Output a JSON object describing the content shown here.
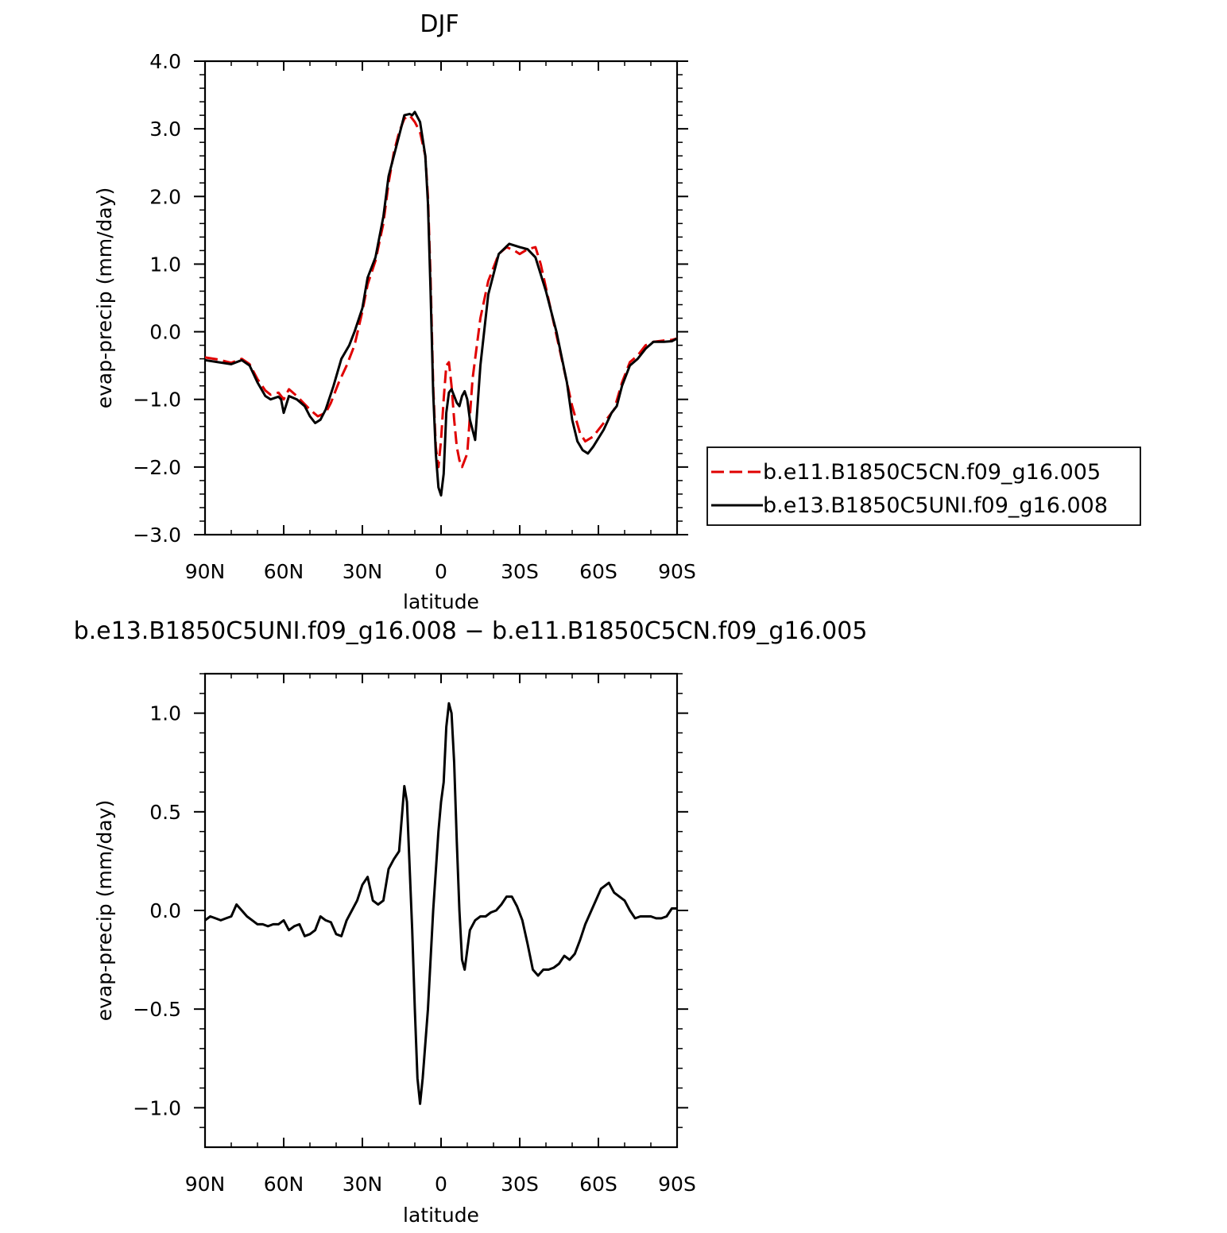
{
  "chart_data": [
    {
      "type": "line",
      "title": "DJF",
      "xlabel": "latitude",
      "ylabel": "evap-precip (mm/day)",
      "xticks": [
        "90N",
        "60N",
        "30N",
        "0",
        "30S",
        "60S",
        "90S"
      ],
      "yticks": [
        "4.0",
        "3.0",
        "2.0",
        "1.0",
        "0.0",
        "−1.0",
        "−2.0",
        "−3.0"
      ],
      "ylim": [
        -3.0,
        4.0
      ],
      "xlim": [
        90,
        -90
      ],
      "legend_position": "right",
      "series": [
        {
          "name": "b.e11.B1850C5CN.f09_g16.005",
          "color": "#e00000",
          "dash": true,
          "points": [
            [
              90,
              -0.38
            ],
            [
              85,
              -0.41
            ],
            [
              80,
              -0.46
            ],
            [
              76,
              -0.4
            ],
            [
              73,
              -0.48
            ],
            [
              70,
              -0.7
            ],
            [
              67,
              -0.87
            ],
            [
              65,
              -0.93
            ],
            [
              62,
              -0.9
            ],
            [
              60,
              -1.0
            ],
            [
              58,
              -0.85
            ],
            [
              55,
              -0.95
            ],
            [
              50,
              -1.15
            ],
            [
              47,
              -1.25
            ],
            [
              44,
              -1.2
            ],
            [
              42,
              -1.05
            ],
            [
              39,
              -0.75
            ],
            [
              36,
              -0.5
            ],
            [
              33,
              -0.2
            ],
            [
              30,
              0.3
            ],
            [
              28,
              0.7
            ],
            [
              25,
              1.05
            ],
            [
              22,
              1.6
            ],
            [
              20,
              2.2
            ],
            [
              18,
              2.65
            ],
            [
              16,
              2.95
            ],
            [
              14,
              3.15
            ],
            [
              12,
              3.2
            ],
            [
              10,
              3.1
            ],
            [
              8,
              2.95
            ],
            [
              6,
              2.6
            ],
            [
              5,
              2.0
            ],
            [
              4,
              0.8
            ],
            [
              3,
              -0.8
            ],
            [
              2,
              -1.7
            ],
            [
              1,
              -2.0
            ],
            [
              0,
              -1.6
            ],
            [
              -1,
              -1.0
            ],
            [
              -2,
              -0.5
            ],
            [
              -3,
              -0.45
            ],
            [
              -4,
              -0.8
            ],
            [
              -5,
              -1.3
            ],
            [
              -6,
              -1.7
            ],
            [
              -7,
              -1.9
            ],
            [
              -8,
              -2.0
            ],
            [
              -10,
              -1.8
            ],
            [
              -12,
              -0.7
            ],
            [
              -15,
              0.2
            ],
            [
              -18,
              0.75
            ],
            [
              -22,
              1.15
            ],
            [
              -25,
              1.25
            ],
            [
              -28,
              1.2
            ],
            [
              -30,
              1.15
            ],
            [
              -33,
              1.22
            ],
            [
              -36,
              1.25
            ],
            [
              -38,
              1.0
            ],
            [
              -42,
              0.3
            ],
            [
              -46,
              -0.4
            ],
            [
              -50,
              -1.1
            ],
            [
              -53,
              -1.5
            ],
            [
              -55,
              -1.62
            ],
            [
              -58,
              -1.55
            ],
            [
              -62,
              -1.35
            ],
            [
              -66,
              -1.15
            ],
            [
              -69,
              -0.75
            ],
            [
              -72,
              -0.45
            ],
            [
              -75,
              -0.35
            ],
            [
              -78,
              -0.2
            ],
            [
              -81,
              -0.15
            ],
            [
              -85,
              -0.13
            ],
            [
              -88,
              -0.12
            ],
            [
              -90,
              -0.1
            ]
          ]
        },
        {
          "name": "b.e13.B1850C5UNI.f09_g16.008",
          "color": "#000000",
          "dash": false,
          "points": [
            [
              90,
              -0.42
            ],
            [
              85,
              -0.45
            ],
            [
              80,
              -0.48
            ],
            [
              76,
              -0.42
            ],
            [
              73,
              -0.5
            ],
            [
              70,
              -0.75
            ],
            [
              67,
              -0.95
            ],
            [
              65,
              -1.0
            ],
            [
              62,
              -0.96
            ],
            [
              61,
              -1.0
            ],
            [
              60,
              -1.2
            ],
            [
              58,
              -0.95
            ],
            [
              55,
              -1.0
            ],
            [
              52,
              -1.1
            ],
            [
              50,
              -1.25
            ],
            [
              48,
              -1.35
            ],
            [
              46,
              -1.3
            ],
            [
              44,
              -1.15
            ],
            [
              41,
              -0.8
            ],
            [
              38,
              -0.4
            ],
            [
              35,
              -0.2
            ],
            [
              33,
              0.0
            ],
            [
              30,
              0.35
            ],
            [
              28,
              0.8
            ],
            [
              25,
              1.1
            ],
            [
              22,
              1.7
            ],
            [
              20,
              2.3
            ],
            [
              18,
              2.6
            ],
            [
              16,
              2.9
            ],
            [
              14,
              3.2
            ],
            [
              12,
              3.22
            ],
            [
              11,
              3.2
            ],
            [
              10,
              3.25
            ],
            [
              8,
              3.1
            ],
            [
              6,
              2.6
            ],
            [
              5,
              1.9
            ],
            [
              4,
              0.6
            ],
            [
              3,
              -0.9
            ],
            [
              2,
              -1.8
            ],
            [
              1,
              -2.3
            ],
            [
              0,
              -2.42
            ],
            [
              -1,
              -2.1
            ],
            [
              -2,
              -1.2
            ],
            [
              -3,
              -0.9
            ],
            [
              -4,
              -0.85
            ],
            [
              -6,
              -1.05
            ],
            [
              -7,
              -1.1
            ],
            [
              -8,
              -0.95
            ],
            [
              -9,
              -0.88
            ],
            [
              -10,
              -1.0
            ],
            [
              -11,
              -1.3
            ],
            [
              -12,
              -1.45
            ],
            [
              -13,
              -1.6
            ],
            [
              -15,
              -0.5
            ],
            [
              -18,
              0.55
            ],
            [
              -22,
              1.15
            ],
            [
              -26,
              1.3
            ],
            [
              -30,
              1.25
            ],
            [
              -33,
              1.22
            ],
            [
              -36,
              1.1
            ],
            [
              -40,
              0.6
            ],
            [
              -44,
              0.0
            ],
            [
              -48,
              -0.75
            ],
            [
              -50,
              -1.3
            ],
            [
              -52,
              -1.62
            ],
            [
              -54,
              -1.75
            ],
            [
              -56,
              -1.8
            ],
            [
              -58,
              -1.7
            ],
            [
              -62,
              -1.45
            ],
            [
              -65,
              -1.2
            ],
            [
              -67,
              -1.1
            ],
            [
              -69,
              -0.8
            ],
            [
              -72,
              -0.5
            ],
            [
              -75,
              -0.4
            ],
            [
              -78,
              -0.25
            ],
            [
              -81,
              -0.15
            ],
            [
              -85,
              -0.15
            ],
            [
              -88,
              -0.14
            ],
            [
              -90,
              -0.1
            ]
          ]
        }
      ]
    },
    {
      "type": "line",
      "title": "b.e13.B1850C5UNI.f09_g16.008 − b.e11.B1850C5CN.f09_g16.005",
      "xlabel": "latitude",
      "ylabel": "evap-precip (mm/day)",
      "xticks": [
        "90N",
        "60N",
        "30N",
        "0",
        "30S",
        "60S",
        "90S"
      ],
      "yticks": [
        "1.0",
        "0.5",
        "0.0",
        "−0.5",
        "−1.0"
      ],
      "ylim": [
        -1.2,
        1.2
      ],
      "xlim": [
        90,
        -90
      ],
      "series": [
        {
          "color": "#000000",
          "dash": false,
          "points": [
            [
              90,
              -0.05
            ],
            [
              88,
              -0.03
            ],
            [
              86,
              -0.04
            ],
            [
              84,
              -0.05
            ],
            [
              82,
              -0.04
            ],
            [
              80,
              -0.03
            ],
            [
              78,
              0.03
            ],
            [
              76,
              0.0
            ],
            [
              74,
              -0.03
            ],
            [
              72,
              -0.05
            ],
            [
              70,
              -0.07
            ],
            [
              68,
              -0.07
            ],
            [
              66,
              -0.08
            ],
            [
              64,
              -0.07
            ],
            [
              62,
              -0.07
            ],
            [
              60,
              -0.05
            ],
            [
              58,
              -0.1
            ],
            [
              56,
              -0.08
            ],
            [
              54,
              -0.07
            ],
            [
              52,
              -0.13
            ],
            [
              50,
              -0.12
            ],
            [
              48,
              -0.1
            ],
            [
              46,
              -0.03
            ],
            [
              44,
              -0.05
            ],
            [
              42,
              -0.06
            ],
            [
              40,
              -0.12
            ],
            [
              38,
              -0.13
            ],
            [
              36,
              -0.05
            ],
            [
              34,
              0.0
            ],
            [
              32,
              0.05
            ],
            [
              30,
              0.13
            ],
            [
              28,
              0.17
            ],
            [
              26,
              0.05
            ],
            [
              24,
              0.03
            ],
            [
              22,
              0.05
            ],
            [
              20,
              0.21
            ],
            [
              18,
              0.26
            ],
            [
              16,
              0.3
            ],
            [
              14,
              0.63
            ],
            [
              13,
              0.55
            ],
            [
              11,
              -0.1
            ],
            [
              10,
              -0.5
            ],
            [
              9,
              -0.85
            ],
            [
              8,
              -0.98
            ],
            [
              7,
              -0.85
            ],
            [
              5,
              -0.5
            ],
            [
              3,
              0.0
            ],
            [
              1,
              0.4
            ],
            [
              0,
              0.55
            ],
            [
              -1,
              0.65
            ],
            [
              -2,
              0.93
            ],
            [
              -3,
              1.05
            ],
            [
              -4,
              1.0
            ],
            [
              -5,
              0.75
            ],
            [
              -6,
              0.35
            ],
            [
              -7,
              0.0
            ],
            [
              -8,
              -0.25
            ],
            [
              -9,
              -0.3
            ],
            [
              -10,
              -0.2
            ],
            [
              -11,
              -0.1
            ],
            [
              -13,
              -0.05
            ],
            [
              -15,
              -0.03
            ],
            [
              -17,
              -0.03
            ],
            [
              -19,
              -0.01
            ],
            [
              -21,
              0.0
            ],
            [
              -23,
              0.03
            ],
            [
              -25,
              0.07
            ],
            [
              -27,
              0.07
            ],
            [
              -29,
              0.02
            ],
            [
              -31,
              -0.05
            ],
            [
              -33,
              -0.17
            ],
            [
              -35,
              -0.3
            ],
            [
              -37,
              -0.33
            ],
            [
              -39,
              -0.3
            ],
            [
              -41,
              -0.3
            ],
            [
              -43,
              -0.29
            ],
            [
              -45,
              -0.27
            ],
            [
              -47,
              -0.23
            ],
            [
              -49,
              -0.25
            ],
            [
              -51,
              -0.22
            ],
            [
              -53,
              -0.15
            ],
            [
              -55,
              -0.07
            ],
            [
              -57,
              -0.01
            ],
            [
              -59,
              0.05
            ],
            [
              -61,
              0.11
            ],
            [
              -63,
              0.13
            ],
            [
              -64,
              0.14
            ],
            [
              -66,
              0.09
            ],
            [
              -68,
              0.07
            ],
            [
              -70,
              0.05
            ],
            [
              -72,
              0.0
            ],
            [
              -74,
              -0.04
            ],
            [
              -76,
              -0.03
            ],
            [
              -78,
              -0.03
            ],
            [
              -80,
              -0.03
            ],
            [
              -82,
              -0.04
            ],
            [
              -84,
              -0.04
            ],
            [
              -86,
              -0.03
            ],
            [
              -88,
              0.01
            ],
            [
              -90,
              0.01
            ]
          ]
        }
      ]
    }
  ]
}
